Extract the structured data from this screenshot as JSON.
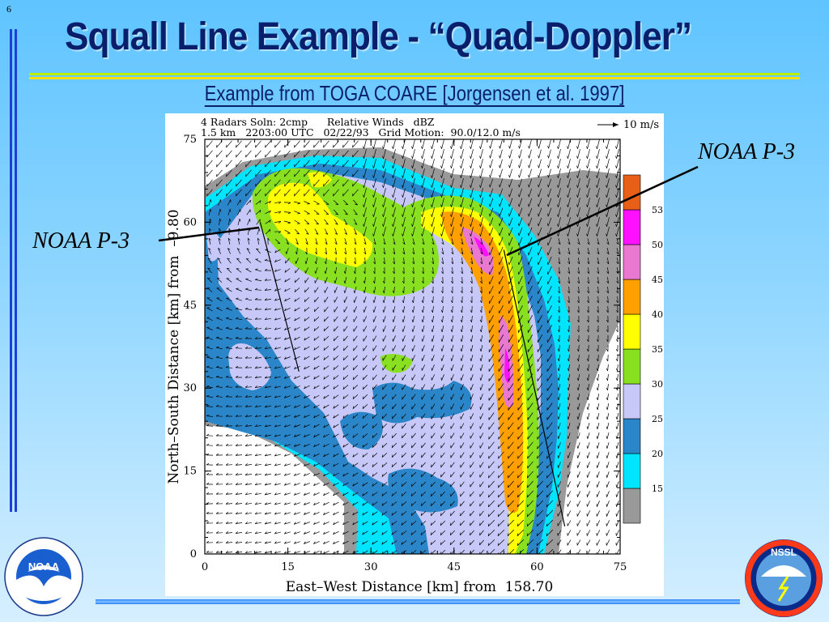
{
  "slide": {
    "number": "6",
    "title": "Squall Line Example - “Quad-Doppler”",
    "subtitle": "Example from TOGA COARE [Jorgensen et al. 1997]",
    "callout_left": "NOAA P-3",
    "callout_right": "NOAA P-3",
    "logo_left_text": "NOAA",
    "logo_right_text": "NSSL"
  },
  "chart_data": {
    "type": "heatmap",
    "header_line1": "4 Radars Soln: 2cmp      Relative Winds   dBZ",
    "header_line2": "1.5 km   2203:00 UTC   02/22/93   Grid Motion:  90.0/12.0 m/s",
    "vector_scale_label": "10 m/s",
    "xlabel": "East–West Distance [km] from  158.70",
    "ylabel": "North–South Distance [km] from  –9.80",
    "xlim": [
      0,
      75
    ],
    "ylim": [
      0,
      75
    ],
    "xticks": [
      0,
      15,
      30,
      45,
      60,
      75
    ],
    "yticks": [
      0,
      15,
      30,
      45,
      60,
      75
    ],
    "colorbar": {
      "ticks": [
        15,
        20,
        25,
        30,
        35,
        40,
        45,
        50,
        53
      ],
      "colors": [
        "#999999",
        "#00e5ff",
        "#2a86c8",
        "#c8c8f8",
        "#88e020",
        "#ffff00",
        "#ffa000",
        "#e878d0",
        "#ff10ff",
        "#e86018"
      ]
    },
    "flight_tracks": [
      [
        [
          10,
          60
        ],
        [
          17,
          33
        ]
      ],
      [
        [
          54,
          55
        ],
        [
          65,
          5
        ]
      ]
    ]
  }
}
